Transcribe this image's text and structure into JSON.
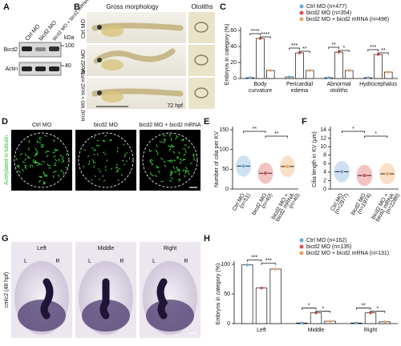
{
  "figure": {
    "panel_labels": [
      "A",
      "B",
      "C",
      "D",
      "E",
      "F",
      "G",
      "H"
    ]
  },
  "blot": {
    "lanes": [
      "Ctrl MO",
      "bicd2 MO",
      "bicd2 MO + bicd2 mRNA"
    ],
    "unit": "kDa",
    "markers": [
      100,
      40
    ],
    "proteins": [
      "Bicd2",
      "Actin"
    ]
  },
  "morphology": {
    "title": "Gross morphology",
    "otolith_title": "Otoliths",
    "rows": [
      "Ctrl MO",
      "bicd2 MO",
      "bicd2 MO + bicd2 mRNA"
    ],
    "stage": "72 hpf"
  },
  "cilia_images": {
    "stain": "Acetylated-α-tubulin",
    "columns": [
      "Ctrl MO",
      "bicd2 MO",
      "bicd2 MO + bicd2 mRNA"
    ]
  },
  "heart_images": {
    "marker": "cmlc2 (48 hpf)",
    "columns": [
      "Left",
      "Middle",
      "Right"
    ],
    "sides": [
      "L",
      "R"
    ]
  },
  "chart_data": [
    {
      "type": "bar",
      "ylabel": "Embryos in category (%)",
      "categories": [
        [
          "Body",
          "curvature"
        ],
        [
          "Pericardial",
          "edema"
        ],
        [
          "Abnormal",
          "otoliths"
        ],
        [
          "Hydrocephalus"
        ]
      ],
      "series": [
        {
          "name": "Ctrl MO (n=477)",
          "color": "#6fa8dc",
          "values": [
            1,
            2,
            1,
            1
          ]
        },
        {
          "name": "bicd2 MO (n=354)",
          "color": "#d9534f",
          "values": [
            50,
            32,
            33,
            30
          ]
        },
        {
          "name": "bicd2 MO + bicd2 mRNA (n=496)",
          "color": "#f0a35e",
          "values": [
            10,
            10,
            10,
            8
          ]
        }
      ],
      "annotations": [
        [
          "****",
          "****"
        ],
        [
          "***",
          "**"
        ],
        [
          "**",
          "*"
        ],
        [
          "***",
          "**"
        ]
      ],
      "ylim": [
        0,
        60
      ],
      "yticks": [
        0,
        20,
        40,
        60
      ]
    },
    {
      "type": "dot",
      "ylabel": "Number of cilia per KV",
      "categories": [
        [
          "Ctrl MO",
          "(n=51)"
        ],
        [
          "bicd2 MO",
          "(n=40)"
        ],
        [
          "bicd2 MO +",
          "bicd2 mRNA",
          "(n=40)"
        ]
      ],
      "values": [
        58,
        40,
        57
      ],
      "colors": [
        "#6fa8dc",
        "#d9534f",
        "#f0a35e"
      ],
      "annotations": [
        "**",
        "**"
      ],
      "ylim": [
        0,
        150
      ],
      "yticks": [
        0,
        50,
        100,
        150
      ]
    },
    {
      "type": "dot",
      "ylabel": "Cilia length in KV (μm)",
      "categories": [
        [
          "Ctrl MO",
          "(n=2977)"
        ],
        [
          "bicd2 MO",
          "(n=1974)"
        ],
        [
          "bicd2 MO +",
          "bicd2 mRNA",
          "(n=2286)"
        ]
      ],
      "values": [
        4.1,
        3.2,
        3.6
      ],
      "colors": [
        "#6fa8dc",
        "#d9534f",
        "#f0a35e"
      ],
      "annotations": [
        "*",
        "*"
      ],
      "ylim": [
        0,
        14
      ],
      "yticks": [
        0,
        2,
        4,
        6,
        8,
        10,
        12,
        14
      ]
    },
    {
      "type": "bar",
      "ylabel": "Embryos in category (%)",
      "categories": [
        [
          "Left"
        ],
        [
          "Middle"
        ],
        [
          "Right"
        ]
      ],
      "series": [
        {
          "name": "Ctrl MO (n=162)",
          "color": "#6fa8dc",
          "values": [
            99,
            1,
            1
          ]
        },
        {
          "name": "bicd2 MO (n=135)",
          "color": "#d9534f",
          "values": [
            60,
            18,
            18
          ]
        },
        {
          "name": "bicd2 MO + bicd2 mRNA (n=131)",
          "color": "#f0a35e",
          "values": [
            92,
            4,
            3
          ]
        }
      ],
      "annotations": [
        [
          "***",
          "***"
        ],
        [
          "*",
          "*"
        ],
        [
          "**",
          "*"
        ]
      ],
      "ylim": [
        0,
        100
      ],
      "yticks": [
        0,
        50,
        100
      ]
    }
  ]
}
